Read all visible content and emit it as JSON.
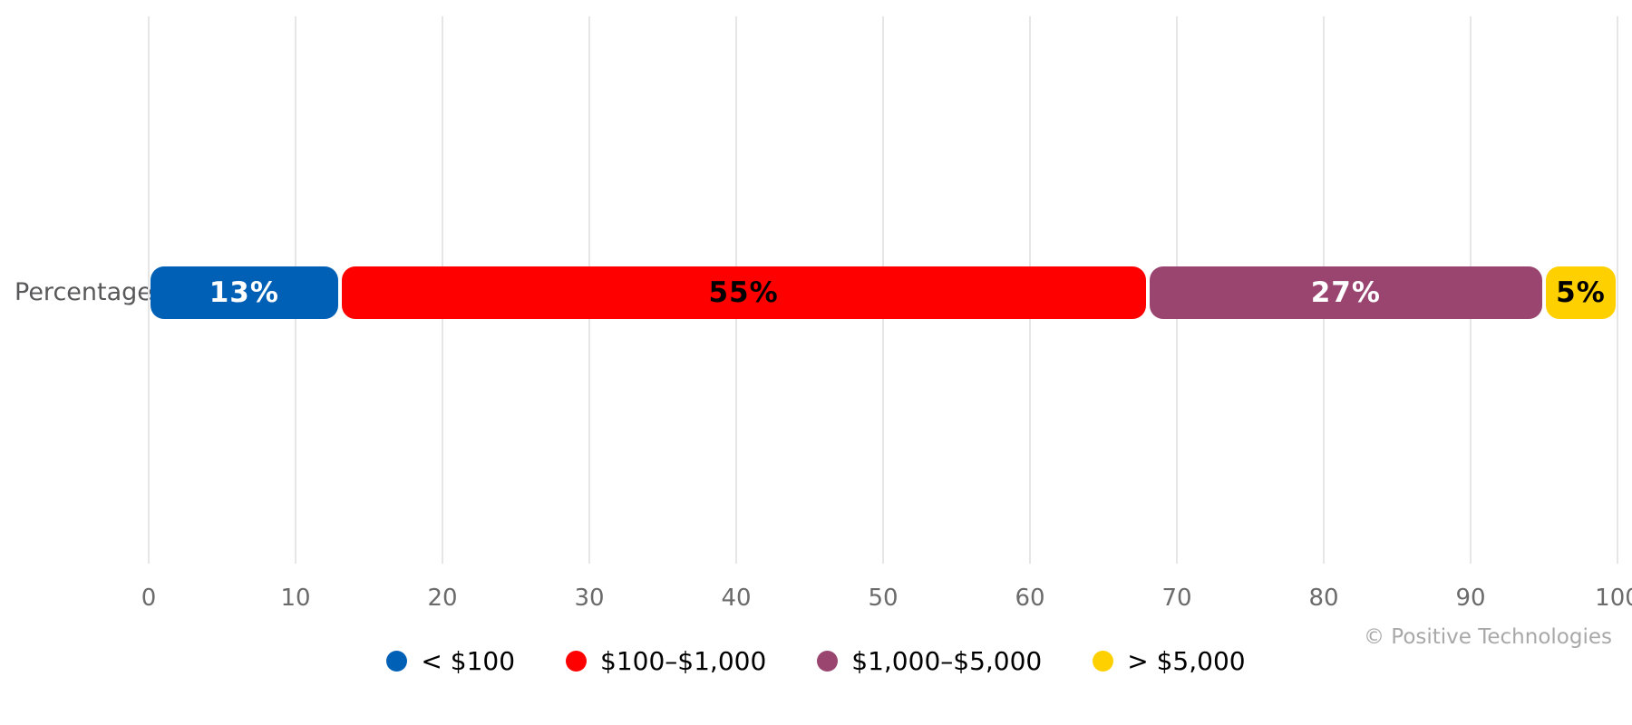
{
  "chart_data": {
    "type": "bar",
    "orientation": "horizontal-stacked",
    "title": "",
    "xlabel": "",
    "ylabel": "",
    "categories": [
      "Percentage"
    ],
    "xlim": [
      0,
      100
    ],
    "xticks": [
      0,
      10,
      20,
      30,
      40,
      50,
      60,
      70,
      80,
      90,
      100
    ],
    "grid": "vertical",
    "legend_position": "bottom-center",
    "series": [
      {
        "name": "< $100",
        "value": 13,
        "color": "#0060b6",
        "label": "13%",
        "label_color": "#ffffff"
      },
      {
        "name": "$100–$1,000",
        "value": 55,
        "color": "#fe0000",
        "label": "55%",
        "label_color": "#000000"
      },
      {
        "name": "$1,000–$5,000",
        "value": 27,
        "color": "#9a4470",
        "label": "27%",
        "label_color": "#ffffff"
      },
      {
        "name": "> $5,000",
        "value": 5,
        "color": "#ffd000",
        "label": "5%",
        "label_color": "#000000"
      }
    ]
  },
  "labels": {
    "row_label": "Percentage",
    "copyright": "© Positive Technologies"
  },
  "colors": {
    "background": "#ffffff",
    "gridline": "#e6e6e6",
    "tick_text": "#6b6b6b",
    "row_label_text": "#58585a",
    "copyright_text": "#a8a8a8"
  }
}
